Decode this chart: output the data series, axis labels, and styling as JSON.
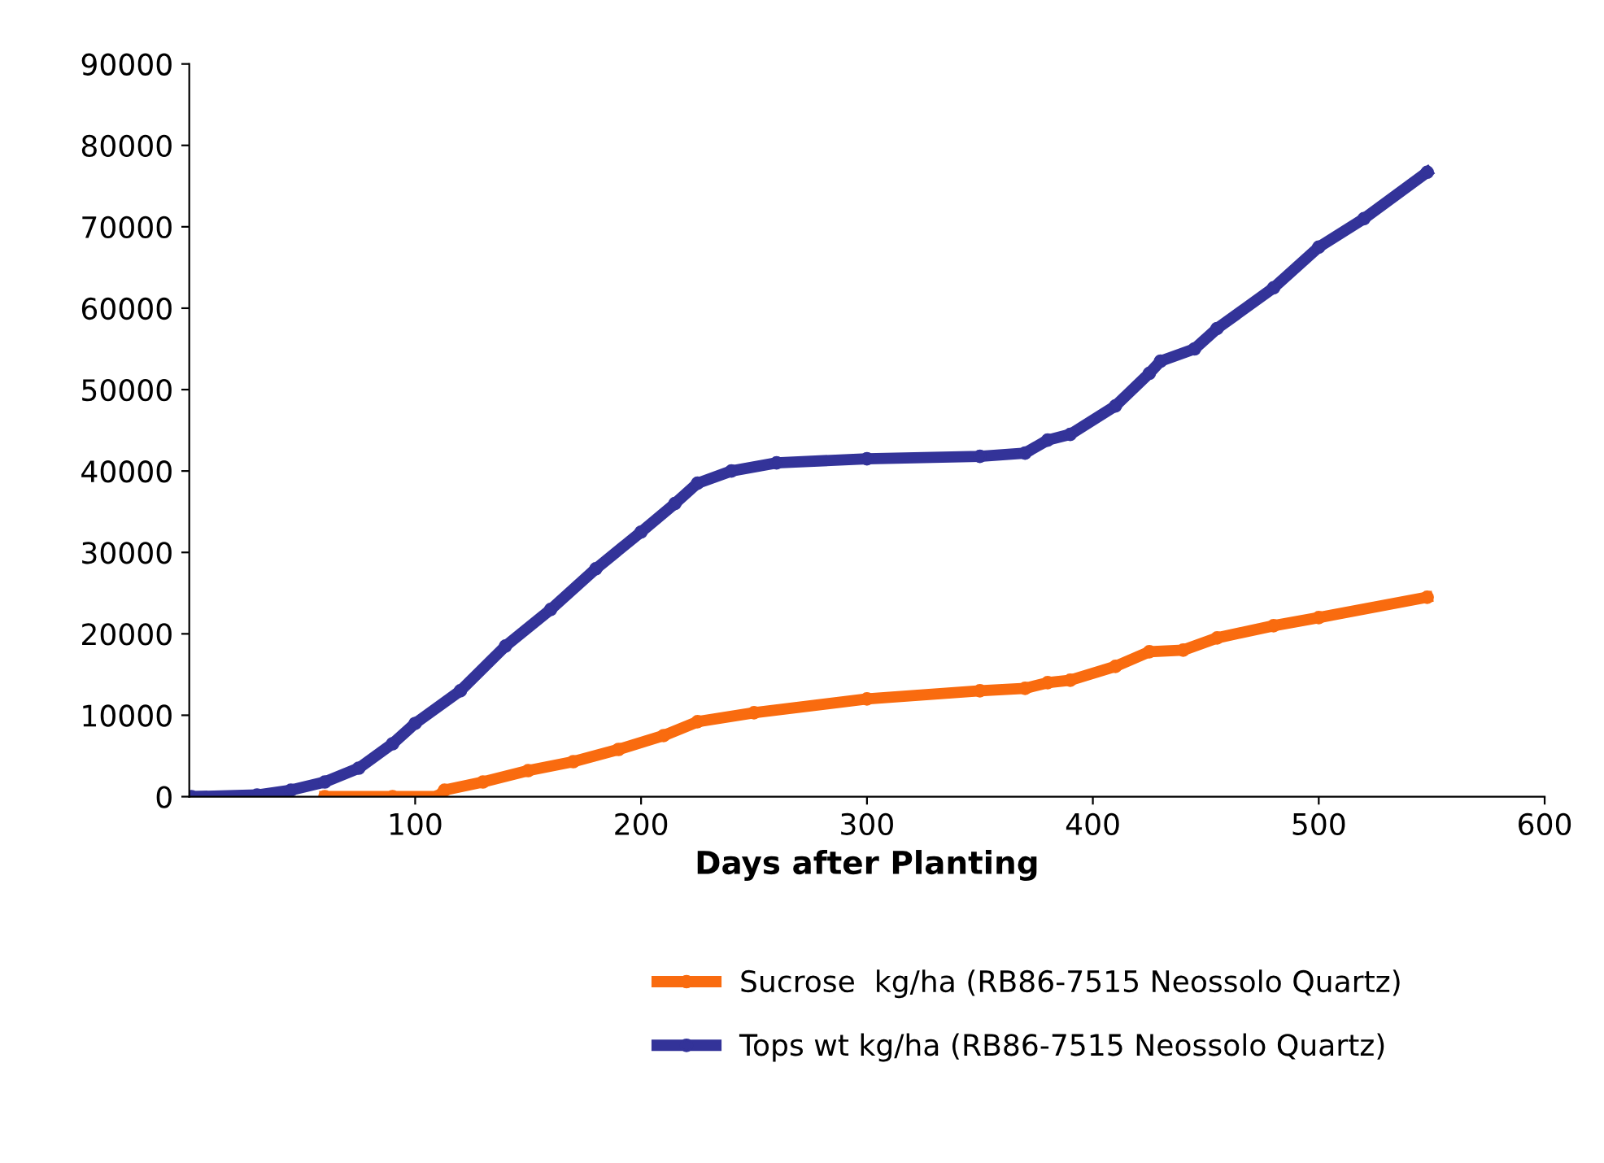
{
  "chart_data": {
    "type": "line",
    "xlabel": "Days after Planting",
    "xlim": [
      0,
      600
    ],
    "xticks": [
      100,
      200,
      300,
      400,
      500,
      600
    ],
    "ylim": [
      0,
      90000
    ],
    "yticks": [
      0,
      10000,
      20000,
      30000,
      40000,
      50000,
      60000,
      70000,
      80000,
      90000
    ],
    "grid": false,
    "legend": "bottom",
    "marker": "circle",
    "line_style": "solid",
    "series": [
      {
        "name": "Sucrose  kg/ha (RB86-7515 Neossolo Quartz)",
        "color": "#f96b0f",
        "x": [
          60,
          90,
          110,
          113,
          130,
          150,
          170,
          190,
          210,
          225,
          250,
          300,
          350,
          370,
          380,
          390,
          410,
          425,
          440,
          455,
          480,
          500,
          548
        ],
        "values": [
          0,
          0,
          0,
          800,
          1800,
          3200,
          4300,
          5800,
          7500,
          9200,
          10300,
          12000,
          13000,
          13300,
          14000,
          14300,
          16000,
          17800,
          18000,
          19500,
          21000,
          22000,
          24500
        ]
      },
      {
        "name": "Tops wt kg/ha (RB86-7515 Neossolo Quartz)",
        "color": "#333399",
        "x": [
          1,
          30,
          45,
          60,
          75,
          90,
          100,
          120,
          140,
          160,
          180,
          200,
          215,
          225,
          240,
          260,
          300,
          350,
          370,
          380,
          390,
          410,
          425,
          430,
          445,
          455,
          480,
          500,
          520,
          548
        ],
        "values": [
          0,
          200,
          800,
          1800,
          3500,
          6500,
          9000,
          13000,
          18500,
          23000,
          28000,
          32500,
          36000,
          38500,
          40000,
          41000,
          41500,
          41800,
          42200,
          43800,
          44500,
          48000,
          52000,
          53500,
          55000,
          57500,
          62500,
          67500,
          71000,
          76700
        ]
      }
    ]
  }
}
